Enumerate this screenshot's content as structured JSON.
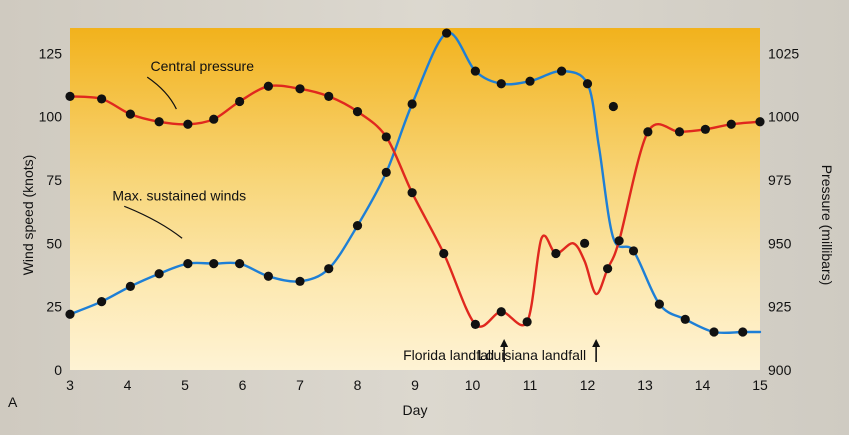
{
  "chart_data": {
    "type": "line",
    "panel_label": "A",
    "xlabel": "Day",
    "ylabel_left": "Wind speed (knots)",
    "ylabel_right": "Pressure (millibars)",
    "x_ticks": [
      3,
      4,
      5,
      6,
      7,
      8,
      9,
      10,
      11,
      12,
      13,
      14,
      15
    ],
    "y_left_ticks": [
      0,
      25,
      50,
      75,
      100,
      125
    ],
    "y_right_ticks": [
      900,
      925,
      950,
      975,
      1000,
      1025
    ],
    "xlim": [
      3,
      15
    ],
    "ylim_left": [
      0,
      135
    ],
    "ylim_right": [
      900,
      1035
    ],
    "series": [
      {
        "name": "Max. sustained winds",
        "axis": "left",
        "color": "#1e7fd6",
        "marker_x": [
          3,
          3.55,
          4.05,
          4.55,
          5.05,
          5.5,
          5.95,
          6.45,
          7.0,
          7.5,
          8.0,
          8.5,
          8.95,
          9.55,
          10.05,
          10.5,
          11.0,
          11.55,
          12.0,
          12.45,
          12.8,
          13.25,
          13.7,
          14.2,
          14.7
        ],
        "marker_y": [
          22,
          27,
          33,
          38,
          42,
          42,
          42,
          37,
          35,
          40,
          57,
          78,
          105,
          133,
          118,
          113,
          114,
          118,
          113,
          104,
          47,
          26,
          20,
          15,
          15
        ],
        "x": [
          3,
          3.55,
          4.05,
          4.55,
          5.05,
          5.5,
          5.95,
          6.45,
          7.0,
          7.5,
          8.0,
          8.5,
          8.95,
          9.55,
          10.05,
          10.5,
          11.0,
          11.55,
          12.0,
          12.2,
          12.45,
          12.8,
          13.25,
          13.7,
          14.2,
          14.7,
          15
        ],
        "y": [
          22,
          27,
          33,
          38,
          42,
          42,
          42,
          37,
          35,
          40,
          57,
          78,
          105,
          133,
          118,
          113,
          114,
          118,
          113,
          88,
          52,
          47,
          26,
          20,
          15,
          15,
          15
        ]
      },
      {
        "name": "Central pressure",
        "axis": "right",
        "color": "#e0281e",
        "marker_x": [
          3,
          3.55,
          4.05,
          4.55,
          5.05,
          5.5,
          5.95,
          6.45,
          7.0,
          7.5,
          8.0,
          8.5,
          8.95,
          9.5,
          10.05,
          10.5,
          10.95,
          11.45,
          11.95,
          12.35,
          12.55,
          13.05,
          13.6,
          14.05,
          14.5,
          15
        ],
        "marker_y": [
          1008,
          1007,
          1001,
          998,
          997,
          999,
          1006,
          1012,
          1011,
          1008,
          1002,
          992,
          970,
          946,
          918,
          923,
          919,
          946,
          950,
          940,
          951,
          994,
          994,
          995,
          997,
          998
        ],
        "x": [
          3,
          3.55,
          4.05,
          4.55,
          5.05,
          5.5,
          5.95,
          6.45,
          7.0,
          7.5,
          8.0,
          8.5,
          8.95,
          9.5,
          10.05,
          10.5,
          10.95,
          11.2,
          11.45,
          11.75,
          11.95,
          12.15,
          12.35,
          12.55,
          13.05,
          13.6,
          14.05,
          14.5,
          15
        ],
        "y": [
          1008,
          1007,
          1001,
          998,
          997,
          999,
          1006,
          1012,
          1011,
          1008,
          1002,
          992,
          970,
          946,
          918,
          923,
          919,
          952,
          946,
          950,
          943,
          930,
          940,
          951,
          994,
          994,
          995,
          997,
          998
        ]
      }
    ],
    "annotations": [
      {
        "text": "Central pressure",
        "x": 5.3,
        "y": 1018,
        "axis": "right",
        "target_x": 4.85,
        "target_y": 1003
      },
      {
        "text": "Max. sustained winds",
        "x": 4.9,
        "y": 67,
        "axis": "left",
        "target_x": 4.95,
        "target_y": 52
      },
      {
        "text": "Florida landfall",
        "arrow_x": 10.55
      },
      {
        "text": "Louisiana landfall",
        "arrow_x": 12.15
      }
    ],
    "grid": false,
    "background": "yellow-orange gradient"
  }
}
